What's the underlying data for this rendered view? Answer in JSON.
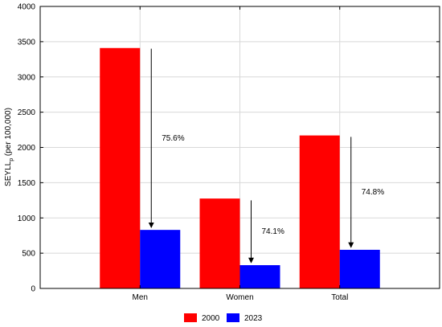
{
  "chart_data": {
    "type": "bar",
    "categories": [
      "Men",
      "Women",
      "Total"
    ],
    "series": [
      {
        "name": "2000",
        "values": [
          3410,
          1275,
          2170
        ],
        "color": "#ff0000"
      },
      {
        "name": "2023",
        "values": [
          830,
          330,
          548
        ],
        "color": "#0000ff"
      }
    ],
    "ylabel_main": "SEYLL",
    "ylabel_sub": "p",
    "ylabel_rest": " (per 100,000)",
    "ylim": [
      0,
      4000
    ],
    "yticks": [
      0,
      500,
      1000,
      1500,
      2000,
      2500,
      3000,
      3500,
      4000
    ],
    "grid": true,
    "legend_position": "bottom-center",
    "annotations": [
      {
        "category": "Men",
        "label": "75.6%",
        "from": 3400,
        "to": 830
      },
      {
        "category": "Women",
        "label": "74.1%",
        "from": 1250,
        "to": 330
      },
      {
        "category": "Total",
        "label": "74.8%",
        "from": 2150,
        "to": 548
      }
    ]
  }
}
